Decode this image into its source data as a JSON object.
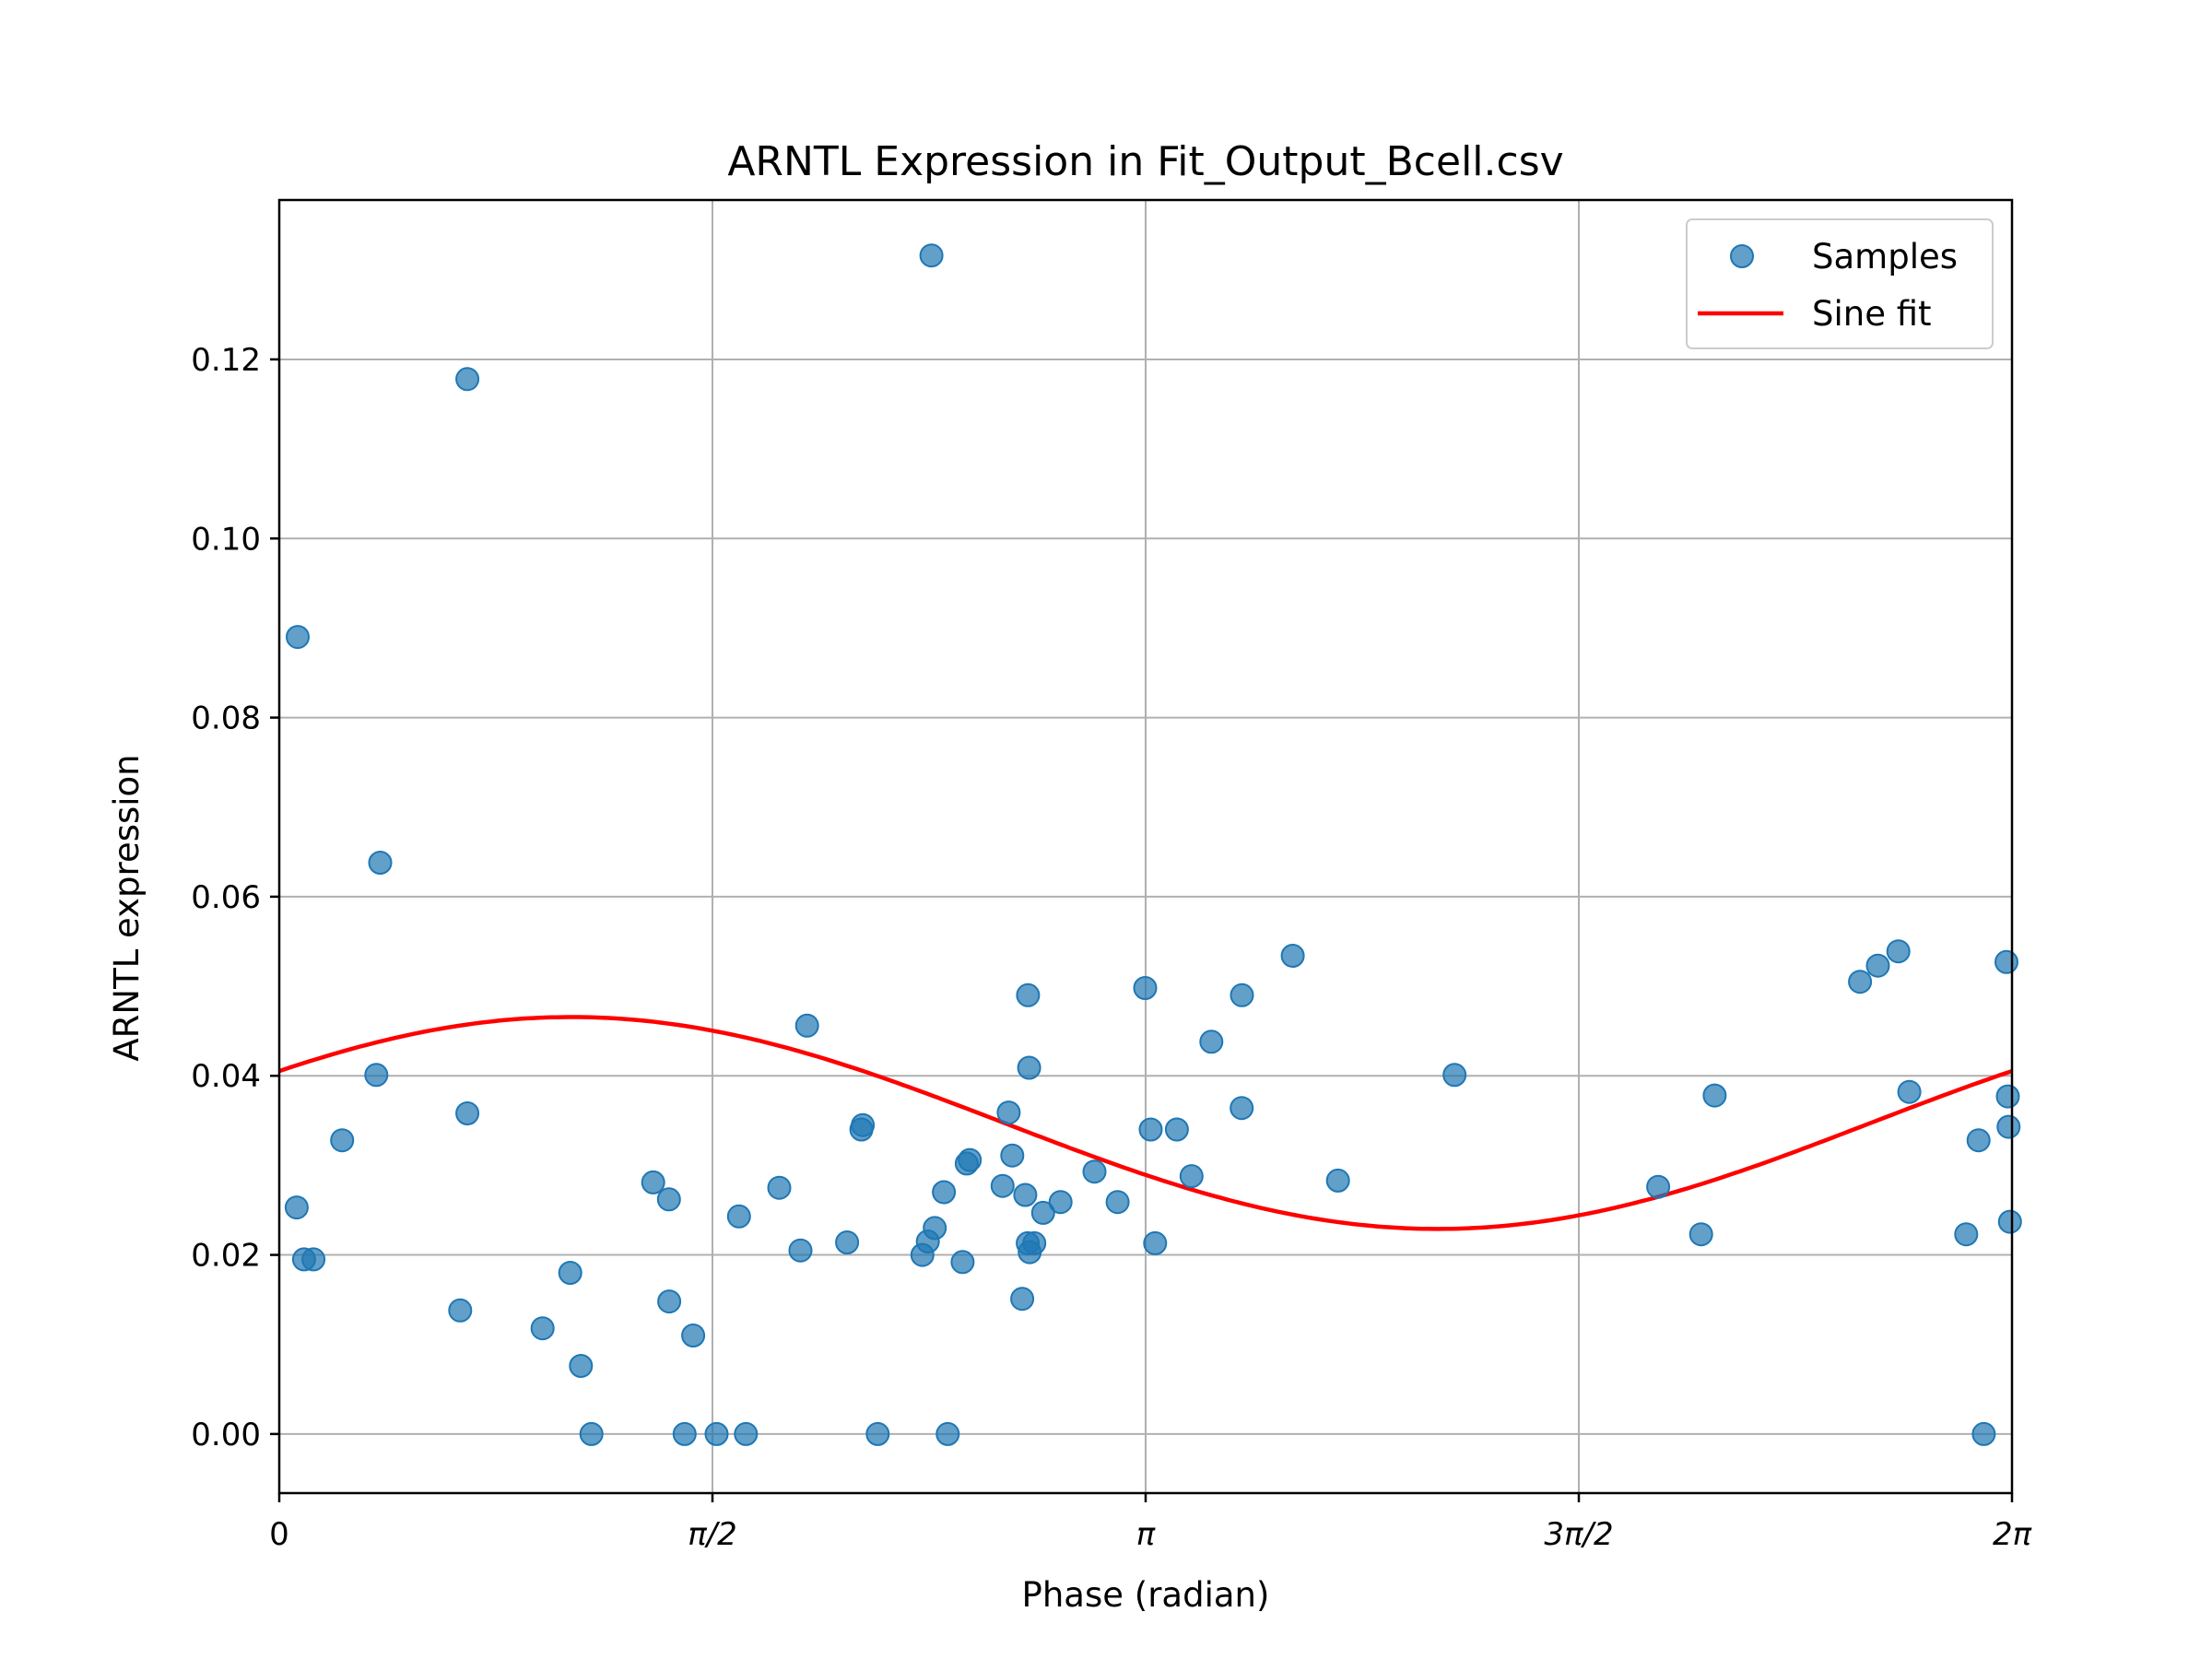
{
  "chart_data": {
    "type": "scatter",
    "title": "ARNTL Expression in Fit_Output_Bcell.csv",
    "xlabel": "Phase (radian)",
    "ylabel": "ARNTL expression",
    "xlim": [
      0,
      6.2832
    ],
    "ylim": [
      -0.0066,
      0.1378
    ],
    "x_ticks": [
      {
        "value": 0,
        "label": "0"
      },
      {
        "value": 1.5708,
        "label": "π/2"
      },
      {
        "value": 3.1416,
        "label": "π"
      },
      {
        "value": 4.7124,
        "label": "3π/2"
      },
      {
        "value": 6.2832,
        "label": "2π"
      }
    ],
    "y_ticks": [
      {
        "value": 0.0,
        "label": "0.00"
      },
      {
        "value": 0.02,
        "label": "0.02"
      },
      {
        "value": 0.04,
        "label": "0.04"
      },
      {
        "value": 0.06,
        "label": "0.06"
      },
      {
        "value": 0.08,
        "label": "0.08"
      },
      {
        "value": 0.1,
        "label": "0.10"
      },
      {
        "value": 0.12,
        "label": "0.12"
      }
    ],
    "grid": true,
    "legend": {
      "position": "top-right",
      "entries": [
        {
          "label": "Samples",
          "kind": "marker",
          "color": "#1f77b4"
        },
        {
          "label": "Sine fit",
          "kind": "line",
          "color": "#ff0000"
        }
      ]
    },
    "series": [
      {
        "name": "Samples",
        "kind": "scatter",
        "color": "#1f77b4",
        "points": [
          [
            0.067,
            0.089
          ],
          [
            0.063,
            0.0253
          ],
          [
            0.09,
            0.0195
          ],
          [
            0.124,
            0.0195
          ],
          [
            0.228,
            0.0328
          ],
          [
            0.352,
            0.0401
          ],
          [
            0.366,
            0.0638
          ],
          [
            0.656,
            0.0138
          ],
          [
            0.682,
            0.1178
          ],
          [
            0.682,
            0.0358
          ],
          [
            0.955,
            0.0118
          ],
          [
            1.055,
            0.018
          ],
          [
            1.094,
            0.0076
          ],
          [
            1.132,
            0.0
          ],
          [
            1.356,
            0.0281
          ],
          [
            1.413,
            0.0262
          ],
          [
            1.414,
            0.0148
          ],
          [
            1.47,
            0.0
          ],
          [
            1.501,
            0.011
          ],
          [
            1.586,
            0.0
          ],
          [
            1.667,
            0.0243
          ],
          [
            1.692,
            0.0
          ],
          [
            1.813,
            0.0275
          ],
          [
            1.89,
            0.0205
          ],
          [
            1.914,
            0.0456
          ],
          [
            2.059,
            0.0214
          ],
          [
            2.111,
            0.034
          ],
          [
            2.116,
            0.0345
          ],
          [
            2.17,
            0.0
          ],
          [
            2.332,
            0.02
          ],
          [
            2.352,
            0.0215
          ],
          [
            2.365,
            0.1316
          ],
          [
            2.377,
            0.023
          ],
          [
            2.41,
            0.027
          ],
          [
            2.424,
            0.0
          ],
          [
            2.478,
            0.0192
          ],
          [
            2.493,
            0.0302
          ],
          [
            2.504,
            0.0306
          ],
          [
            2.623,
            0.0277
          ],
          [
            2.645,
            0.0359
          ],
          [
            2.658,
            0.0311
          ],
          [
            2.694,
            0.0151
          ],
          [
            2.705,
            0.0267
          ],
          [
            2.715,
            0.049
          ],
          [
            2.719,
            0.0409
          ],
          [
            2.714,
            0.0213
          ],
          [
            2.721,
            0.0203
          ],
          [
            2.738,
            0.0213
          ],
          [
            2.77,
            0.0247
          ],
          [
            2.833,
            0.0259
          ],
          [
            2.956,
            0.0293
          ],
          [
            3.04,
            0.0259
          ],
          [
            3.14,
            0.0498
          ],
          [
            3.16,
            0.034
          ],
          [
            3.176,
            0.0213
          ],
          [
            3.255,
            0.034
          ],
          [
            3.308,
            0.0288
          ],
          [
            3.38,
            0.0438
          ],
          [
            3.49,
            0.0364
          ],
          [
            3.491,
            0.049
          ],
          [
            3.675,
            0.0534
          ],
          [
            3.839,
            0.0283
          ],
          [
            4.262,
            0.0401
          ],
          [
            5.0,
            0.0276
          ],
          [
            5.156,
            0.0223
          ],
          [
            5.205,
            0.0378
          ],
          [
            5.732,
            0.0505
          ],
          [
            5.797,
            0.0523
          ],
          [
            5.871,
            0.0539
          ],
          [
            5.911,
            0.0382
          ],
          [
            6.117,
            0.0223
          ],
          [
            6.162,
            0.0328
          ],
          [
            6.181,
            0.0
          ],
          [
            6.263,
            0.0527
          ],
          [
            6.268,
            0.0377
          ],
          [
            6.271,
            0.0343
          ],
          [
            6.276,
            0.0237
          ]
        ]
      },
      {
        "name": "Sine fit",
        "kind": "line",
        "color": "#ff0000",
        "function": "a*sin(x+phi)+c",
        "params": {
          "a": 0.01183,
          "c": 0.03473,
          "phi": 0.5123
        },
        "x_range": [
          0,
          6.2832
        ]
      }
    ]
  }
}
